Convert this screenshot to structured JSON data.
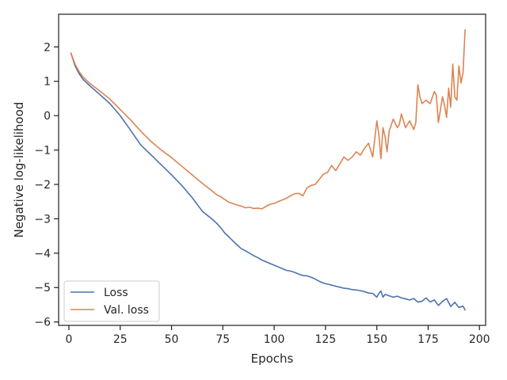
{
  "chart_data": {
    "type": "line",
    "title": "",
    "xlabel": "Epochs",
    "ylabel": "Negative log-likelihood",
    "xlim": [
      -5,
      203
    ],
    "ylim": [
      -6.1,
      2.95
    ],
    "xticks": [
      0,
      25,
      50,
      75,
      100,
      125,
      150,
      175,
      200
    ],
    "xtick_labels": [
      "0",
      "25",
      "50",
      "75",
      "100",
      "125",
      "150",
      "175",
      "200"
    ],
    "yticks": [
      2,
      1,
      0,
      -1,
      -2,
      -3,
      -4,
      -5,
      -6
    ],
    "ytick_labels": [
      "2",
      "1",
      "0",
      "−1",
      "−2",
      "−3",
      "−4",
      "−5",
      "−6"
    ],
    "grid": false,
    "legend_position": "lower-left",
    "series": [
      {
        "name": "Loss",
        "color": "#4c72b0",
        "x": [
          1,
          3,
          5,
          7,
          10,
          15,
          20,
          25,
          30,
          35,
          40,
          45,
          50,
          55,
          60,
          65,
          70,
          72,
          74,
          76,
          78,
          80,
          82,
          84,
          86,
          88,
          90,
          92,
          94,
          96,
          98,
          100,
          102,
          104,
          106,
          108,
          110,
          112,
          114,
          116,
          118,
          120,
          122,
          124,
          126,
          128,
          130,
          132,
          134,
          136,
          138,
          140,
          142,
          144,
          146,
          148,
          150,
          151,
          152,
          153,
          154,
          156,
          158,
          160,
          162,
          164,
          166,
          168,
          170,
          172,
          174,
          176,
          178,
          180,
          182,
          184,
          186,
          188,
          190,
          192,
          193
        ],
        "values": [
          1.82,
          1.45,
          1.22,
          1.05,
          0.88,
          0.62,
          0.35,
          0.0,
          -0.42,
          -0.85,
          -1.14,
          -1.43,
          -1.72,
          -2.03,
          -2.38,
          -2.78,
          -3.02,
          -3.13,
          -3.26,
          -3.42,
          -3.53,
          -3.65,
          -3.76,
          -3.87,
          -3.93,
          -4.0,
          -4.07,
          -4.13,
          -4.2,
          -4.25,
          -4.3,
          -4.35,
          -4.4,
          -4.45,
          -4.5,
          -4.52,
          -4.56,
          -4.61,
          -4.65,
          -4.66,
          -4.7,
          -4.75,
          -4.82,
          -4.87,
          -4.9,
          -4.93,
          -4.96,
          -4.99,
          -5.02,
          -5.03,
          -5.06,
          -5.07,
          -5.09,
          -5.12,
          -5.16,
          -5.17,
          -5.28,
          -5.17,
          -5.1,
          -5.28,
          -5.2,
          -5.24,
          -5.28,
          -5.25,
          -5.3,
          -5.33,
          -5.36,
          -5.32,
          -5.42,
          -5.4,
          -5.3,
          -5.42,
          -5.36,
          -5.52,
          -5.4,
          -5.32,
          -5.55,
          -5.43,
          -5.58,
          -5.54,
          -5.65
        ]
      },
      {
        "name": "Val. loss",
        "color": "#dd8452",
        "x": [
          1,
          3,
          5,
          7,
          10,
          15,
          20,
          25,
          30,
          35,
          40,
          45,
          50,
          55,
          60,
          65,
          70,
          72,
          74,
          76,
          78,
          80,
          82,
          84,
          86,
          88,
          90,
          92,
          94,
          96,
          98,
          100,
          102,
          104,
          106,
          108,
          110,
          112,
          114,
          116,
          118,
          120,
          122,
          124,
          126,
          128,
          130,
          132,
          134,
          136,
          138,
          140,
          142,
          144,
          146,
          148,
          150,
          151,
          152,
          153,
          154,
          155,
          156,
          158,
          160,
          161,
          162,
          164,
          166,
          168,
          169,
          170,
          171,
          172,
          174,
          176,
          178,
          179,
          180,
          182,
          183,
          184,
          185,
          186,
          187,
          188,
          189,
          190,
          191,
          192,
          193
        ],
        "values": [
          1.82,
          1.5,
          1.28,
          1.12,
          0.95,
          0.72,
          0.48,
          0.18,
          -0.12,
          -0.45,
          -0.75,
          -1.0,
          -1.22,
          -1.47,
          -1.72,
          -1.97,
          -2.2,
          -2.3,
          -2.36,
          -2.44,
          -2.52,
          -2.56,
          -2.6,
          -2.63,
          -2.68,
          -2.66,
          -2.7,
          -2.69,
          -2.71,
          -2.64,
          -2.58,
          -2.55,
          -2.5,
          -2.45,
          -2.4,
          -2.33,
          -2.27,
          -2.26,
          -2.33,
          -2.1,
          -2.03,
          -2.0,
          -1.85,
          -1.7,
          -1.65,
          -1.45,
          -1.6,
          -1.4,
          -1.2,
          -1.3,
          -1.2,
          -1.05,
          -1.15,
          -0.95,
          -0.8,
          -1.2,
          -0.15,
          -0.55,
          -1.25,
          -0.35,
          -0.6,
          -1.05,
          -0.45,
          -0.1,
          -0.35,
          -0.25,
          0.05,
          -0.35,
          -0.15,
          -0.4,
          -0.2,
          0.9,
          0.55,
          0.35,
          0.45,
          0.35,
          0.7,
          0.6,
          -0.2,
          0.55,
          0.3,
          -0.05,
          0.8,
          0.25,
          1.5,
          0.55,
          0.45,
          1.45,
          0.95,
          1.25,
          2.5
        ]
      }
    ]
  }
}
